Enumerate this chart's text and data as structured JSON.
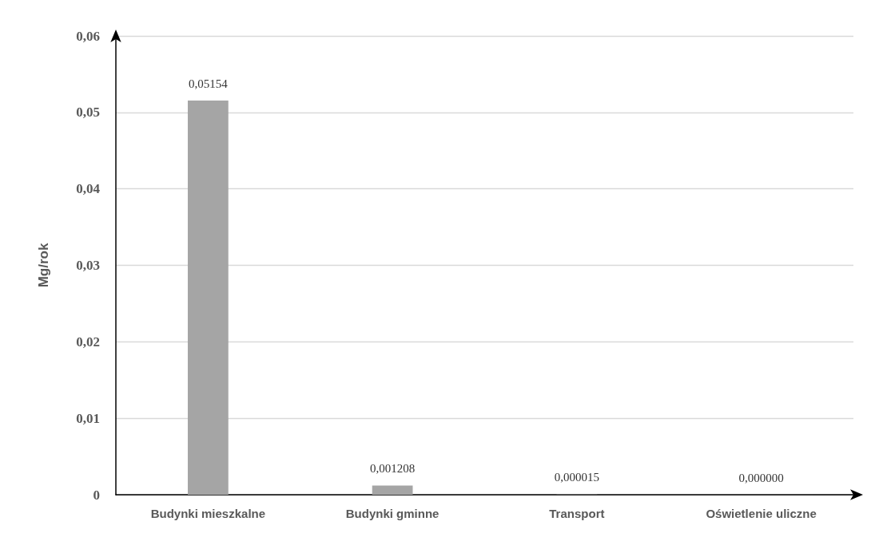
{
  "chart_data": {
    "type": "bar",
    "ylabel": "Mg/rok",
    "categories": [
      "Budynki mieszkalne",
      "Budynki gminne",
      "Transport",
      "Oświetlenie uliczne"
    ],
    "values": [
      0.05154,
      0.001208,
      1.5e-05,
      0
    ],
    "value_labels": [
      "0,05154",
      "0,001208",
      "0,000015",
      "0,000000"
    ],
    "color": "#a5a5a5",
    "ylim": [
      0,
      0.06
    ],
    "yticks": [
      0,
      {
        "value": 0.01,
        "label": "0,01"
      },
      {
        "value": 0.02,
        "label": "0,02"
      },
      {
        "value": 0.03,
        "label": "0,03"
      },
      {
        "value": 0.04,
        "label": "0,04"
      },
      {
        "value": 0.05,
        "label": "0,05"
      },
      {
        "value": 0.06,
        "label": "0,06"
      }
    ],
    "grid": "y"
  }
}
